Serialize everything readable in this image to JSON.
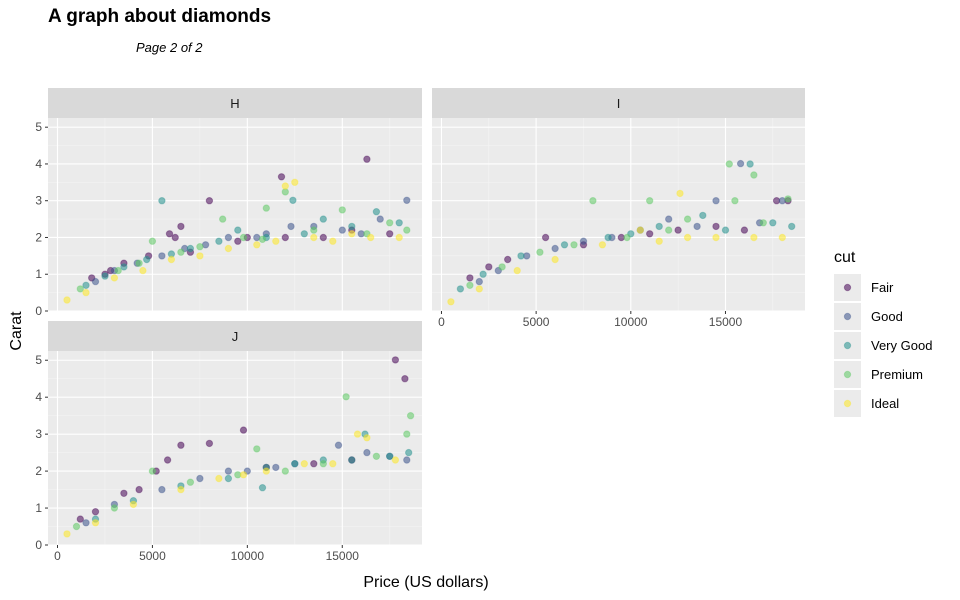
{
  "title": "A graph about diamonds",
  "subtitle": "Page 2 of 2",
  "colors": {
    "panel_bg": "#ebebeb",
    "strip_bg": "#d9d9d9",
    "grid_major": "#ffffff",
    "Fair": "#440154",
    "Good": "#3b528b",
    "Very Good": "#21908c",
    "Premium": "#5dc863",
    "Ideal": "#fde725"
  },
  "chart_data": {
    "type": "scatter",
    "facet_var": "color",
    "facets": [
      "H",
      "I",
      "J"
    ],
    "xlabel": "Price (US dollars)",
    "ylabel": "Carat",
    "xlim": [
      -500,
      19200
    ],
    "ylim": [
      0,
      5.25
    ],
    "x_ticks": [
      0,
      5000,
      10000,
      15000
    ],
    "y_ticks": [
      0,
      1,
      2,
      3,
      4,
      5
    ],
    "legend": {
      "title": "cut",
      "position": "right",
      "entries": [
        "Fair",
        "Good",
        "Very Good",
        "Premium",
        "Ideal"
      ]
    },
    "grid": true,
    "point_alpha": 0.55,
    "panels": {
      "H": [
        {
          "cut": "Fair",
          "points": [
            [
              16300,
              4.13
            ],
            [
              11800,
              3.65
            ],
            [
              8000,
              3.0
            ],
            [
              6500,
              2.3
            ],
            [
              5900,
              2.1
            ],
            [
              4800,
              1.5
            ],
            [
              7000,
              1.6
            ],
            [
              10000,
              2.0
            ],
            [
              14000,
              2.0
            ],
            [
              17500,
              2.1
            ],
            [
              2500,
              1.0
            ],
            [
              3500,
              1.3
            ],
            [
              6200,
              2.0
            ],
            [
              9500,
              1.9
            ],
            [
              12000,
              2.0
            ],
            [
              15500,
              2.2
            ],
            [
              1800,
              0.9
            ],
            [
              2800,
              1.1
            ]
          ]
        },
        {
          "cut": "Good",
          "points": [
            [
              18400,
              3.01
            ],
            [
              12300,
              2.3
            ],
            [
              9000,
              2.0
            ],
            [
              6700,
              1.7
            ],
            [
              4200,
              1.3
            ],
            [
              15000,
              2.2
            ],
            [
              17000,
              2.5
            ],
            [
              2000,
              0.8
            ],
            [
              5500,
              1.5
            ],
            [
              11000,
              2.1
            ],
            [
              13500,
              2.3
            ],
            [
              16000,
              2.1
            ],
            [
              3000,
              1.1
            ],
            [
              7800,
              1.8
            ],
            [
              10500,
              2.0
            ]
          ]
        },
        {
          "cut": "Very Good",
          "points": [
            [
              5500,
              3.0
            ],
            [
              12400,
              3.01
            ],
            [
              9500,
              2.2
            ],
            [
              7000,
              1.7
            ],
            [
              14000,
              2.5
            ],
            [
              16800,
              2.7
            ],
            [
              18000,
              2.4
            ],
            [
              3500,
              1.2
            ],
            [
              4700,
              1.4
            ],
            [
              11000,
              2.0
            ],
            [
              8500,
              1.9
            ],
            [
              13000,
              2.1
            ],
            [
              15500,
              2.3
            ],
            [
              1500,
              0.7
            ],
            [
              2500,
              0.95
            ],
            [
              6000,
              1.55
            ]
          ]
        },
        {
          "cut": "Premium",
          "points": [
            [
              12000,
              3.24
            ],
            [
              11000,
              2.8
            ],
            [
              8700,
              2.5
            ],
            [
              5000,
              1.9
            ],
            [
              15000,
              2.75
            ],
            [
              17500,
              2.4
            ],
            [
              18400,
              2.2
            ],
            [
              6500,
              1.6
            ],
            [
              9800,
              2.0
            ],
            [
              13500,
              2.2
            ],
            [
              16300,
              2.1
            ],
            [
              3200,
              1.1
            ],
            [
              4300,
              1.3
            ],
            [
              1200,
              0.6
            ],
            [
              7500,
              1.75
            ],
            [
              10800,
              1.95
            ]
          ]
        },
        {
          "cut": "Ideal",
          "points": [
            [
              12500,
              3.5
            ],
            [
              12000,
              3.4
            ],
            [
              13500,
              2.0
            ],
            [
              9000,
              1.7
            ],
            [
              6000,
              1.4
            ],
            [
              3000,
              0.9
            ],
            [
              15500,
              2.1
            ],
            [
              18000,
              2.0
            ],
            [
              10500,
              1.8
            ],
            [
              14500,
              1.9
            ],
            [
              16500,
              2.0
            ],
            [
              500,
              0.3
            ],
            [
              1500,
              0.5
            ],
            [
              4500,
              1.1
            ],
            [
              7500,
              1.5
            ],
            [
              11500,
              1.9
            ]
          ]
        }
      ],
      "I": [
        {
          "cut": "Fair",
          "points": [
            [
              2500,
              1.2
            ],
            [
              5500,
              2.0
            ],
            [
              9500,
              2.0
            ],
            [
              12500,
              2.2
            ],
            [
              17700,
              3.0
            ],
            [
              18300,
              3.0
            ],
            [
              1500,
              0.9
            ],
            [
              3500,
              1.4
            ],
            [
              7500,
              1.8
            ],
            [
              11000,
              2.1
            ],
            [
              14500,
              2.3
            ],
            [
              16000,
              2.2
            ]
          ]
        },
        {
          "cut": "Good",
          "points": [
            [
              15800,
              4.01
            ],
            [
              14500,
              3.0
            ],
            [
              18000,
              3.0
            ],
            [
              12000,
              2.5
            ],
            [
              9000,
              2.0
            ],
            [
              6000,
              1.7
            ],
            [
              3000,
              1.1
            ],
            [
              10500,
              2.2
            ],
            [
              13500,
              2.3
            ],
            [
              16800,
              2.4
            ],
            [
              2000,
              0.8
            ],
            [
              4500,
              1.5
            ],
            [
              7500,
              1.9
            ]
          ]
        },
        {
          "cut": "Very Good",
          "points": [
            [
              16300,
              4.0
            ],
            [
              13800,
              2.6
            ],
            [
              11500,
              2.3
            ],
            [
              8800,
              2.0
            ],
            [
              6500,
              1.8
            ],
            [
              4200,
              1.5
            ],
            [
              2200,
              1.0
            ],
            [
              17500,
              2.4
            ],
            [
              18500,
              2.3
            ],
            [
              15000,
              2.2
            ],
            [
              10000,
              2.1
            ],
            [
              1000,
              0.6
            ]
          ]
        },
        {
          "cut": "Premium",
          "points": [
            [
              15200,
              4.0
            ],
            [
              16500,
              3.7
            ],
            [
              8000,
              3.0
            ],
            [
              11000,
              3.0
            ],
            [
              15500,
              3.0
            ],
            [
              18300,
              3.05
            ],
            [
              13000,
              2.5
            ],
            [
              9800,
              2.0
            ],
            [
              7000,
              1.8
            ],
            [
              5200,
              1.6
            ],
            [
              3200,
              1.2
            ],
            [
              1500,
              0.7
            ],
            [
              12000,
              2.2
            ],
            [
              17000,
              2.4
            ]
          ]
        },
        {
          "cut": "Ideal",
          "points": [
            [
              12600,
              3.2
            ],
            [
              10500,
              2.2
            ],
            [
              8500,
              1.8
            ],
            [
              6000,
              1.4
            ],
            [
              4000,
              1.1
            ],
            [
              2000,
              0.6
            ],
            [
              14500,
              2.0
            ],
            [
              16500,
              2.0
            ],
            [
              18000,
              2.0
            ],
            [
              11500,
              1.9
            ],
            [
              13000,
              2.0
            ],
            [
              500,
              0.25
            ]
          ]
        }
      ],
      "J": [
        {
          "cut": "Fair",
          "points": [
            [
              17800,
              5.01
            ],
            [
              18300,
              4.5
            ],
            [
              9800,
              3.11
            ],
            [
              8000,
              2.75
            ],
            [
              6500,
              2.7
            ],
            [
              5800,
              2.3
            ],
            [
              5200,
              2.0
            ],
            [
              3500,
              1.4
            ],
            [
              2000,
              0.9
            ],
            [
              11000,
              2.1
            ],
            [
              13500,
              2.2
            ],
            [
              15500,
              2.3
            ],
            [
              1200,
              0.7
            ],
            [
              4300,
              1.5
            ]
          ]
        },
        {
          "cut": "Good",
          "points": [
            [
              14800,
              2.7
            ],
            [
              17500,
              2.4
            ],
            [
              12500,
              2.2
            ],
            [
              10000,
              2.0
            ],
            [
              7500,
              1.8
            ],
            [
              5500,
              1.5
            ],
            [
              3000,
              1.1
            ],
            [
              16300,
              2.5
            ],
            [
              18400,
              2.3
            ],
            [
              1500,
              0.6
            ],
            [
              9000,
              2.0
            ],
            [
              11500,
              2.1
            ]
          ]
        },
        {
          "cut": "Very Good",
          "points": [
            [
              16200,
              3.0
            ],
            [
              18500,
              2.5
            ],
            [
              14000,
              2.3
            ],
            [
              11000,
              2.1
            ],
            [
              9000,
              1.8
            ],
            [
              6500,
              1.6
            ],
            [
              4000,
              1.2
            ],
            [
              2000,
              0.7
            ],
            [
              12500,
              2.2
            ],
            [
              15500,
              2.3
            ],
            [
              10800,
              1.55
            ],
            [
              17500,
              2.4
            ]
          ]
        },
        {
          "cut": "Premium",
          "points": [
            [
              15200,
              4.01
            ],
            [
              18600,
              3.5
            ],
            [
              18400,
              3.0
            ],
            [
              10500,
              2.6
            ],
            [
              5000,
              2.0
            ],
            [
              7000,
              1.7
            ],
            [
              9500,
              1.9
            ],
            [
              12000,
              2.0
            ],
            [
              14000,
              2.2
            ],
            [
              16800,
              2.4
            ],
            [
              3000,
              1.0
            ],
            [
              1000,
              0.5
            ]
          ]
        },
        {
          "cut": "Ideal",
          "points": [
            [
              15800,
              3.0
            ],
            [
              16300,
              2.9
            ],
            [
              13000,
              2.2
            ],
            [
              11000,
              2.0
            ],
            [
              8500,
              1.8
            ],
            [
              6500,
              1.5
            ],
            [
              4000,
              1.1
            ],
            [
              2000,
              0.6
            ],
            [
              17800,
              2.3
            ],
            [
              14500,
              2.2
            ],
            [
              9800,
              1.9
            ],
            [
              500,
              0.3
            ]
          ]
        }
      ]
    }
  }
}
